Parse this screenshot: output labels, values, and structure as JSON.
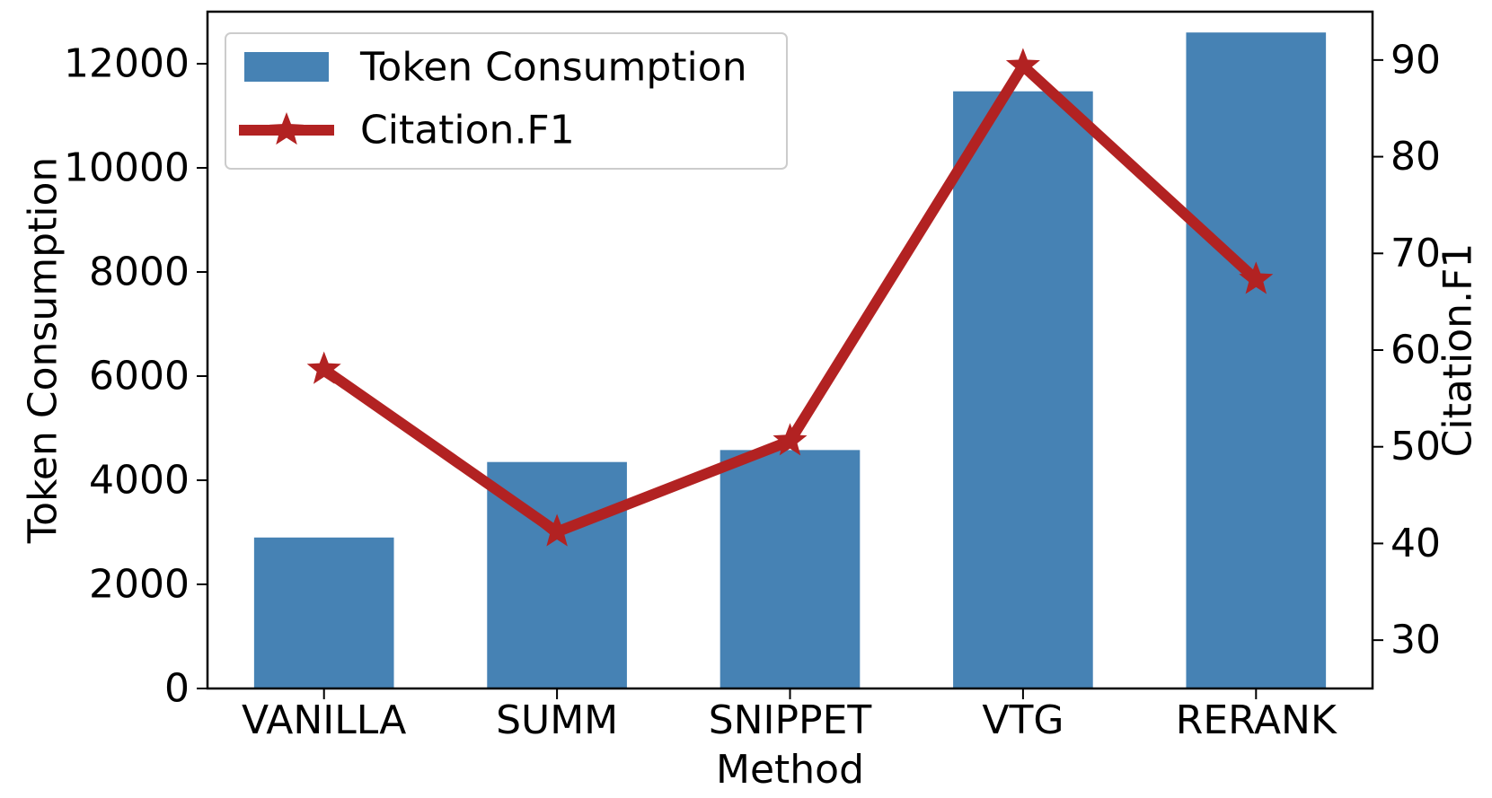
{
  "chart_data": {
    "type": "bar",
    "categories": [
      "VANILLA",
      "SUMM",
      "SNIPPET",
      "VTG",
      "RERANK"
    ],
    "xlabel": "Method",
    "ylabel": "Token Consumption",
    "y2label": "Citation.F1",
    "ylim": [
      0,
      13000
    ],
    "y2lim": [
      25,
      95
    ],
    "yticks": [
      0,
      2000,
      4000,
      6000,
      8000,
      10000,
      12000
    ],
    "y2ticks": [
      30,
      40,
      50,
      60,
      70,
      80,
      90
    ],
    "legend_position": "upper-left",
    "grid": false,
    "series": [
      {
        "name": "Token Consumption",
        "type": "bar",
        "axis": "left",
        "color": "#4682b4",
        "values": [
          2900,
          4350,
          4580,
          11470,
          12600
        ]
      },
      {
        "name": "Citation.F1",
        "type": "line",
        "marker": "star",
        "axis": "right",
        "color": "#b22222",
        "values": [
          58.0,
          41.2,
          50.6,
          89.4,
          67.3
        ]
      }
    ]
  }
}
